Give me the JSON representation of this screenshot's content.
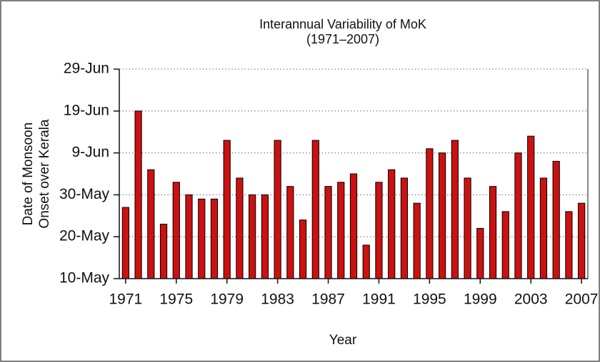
{
  "chart_data": {
    "type": "bar",
    "title": "Interannual Variability of MoK",
    "subtitle": "(1971–2007)",
    "xlabel": "Year",
    "ylabel": [
      "Date of Monsoon",
      "Onset over Kerala"
    ],
    "x": [
      1971,
      1972,
      1973,
      1974,
      1975,
      1976,
      1977,
      1978,
      1979,
      1980,
      1981,
      1982,
      1983,
      1984,
      1985,
      1986,
      1987,
      1988,
      1989,
      1990,
      1991,
      1992,
      1993,
      1994,
      1995,
      1996,
      1997,
      1998,
      1999,
      2000,
      2001,
      2002,
      2003,
      2004,
      2005,
      2006,
      2007
    ],
    "values": [
      27,
      50,
      36,
      23,
      33,
      30,
      29,
      29,
      43,
      34,
      30,
      30,
      43,
      32,
      24,
      43,
      32,
      33,
      35,
      18,
      33,
      36,
      34,
      28,
      41,
      40,
      43,
      34,
      22,
      32,
      26,
      40,
      44,
      34,
      38,
      26,
      28
    ],
    "color": "#cc1111",
    "xlim": [
      1970.5,
      2007.5
    ],
    "xticks": [
      1971,
      1975,
      1979,
      1983,
      1987,
      1991,
      1995,
      1999,
      2003,
      2007
    ],
    "ylim": [
      10,
      60
    ],
    "yticks": [
      {
        "value": 10,
        "label": "10-May"
      },
      {
        "value": 20,
        "label": "20-May"
      },
      {
        "value": 30,
        "label": "30-May"
      },
      {
        "value": 40,
        "label": "9-Jun"
      },
      {
        "value": 50,
        "label": "19-Jun"
      },
      {
        "value": 60,
        "label": "29-Jun"
      }
    ],
    "grid": true
  }
}
